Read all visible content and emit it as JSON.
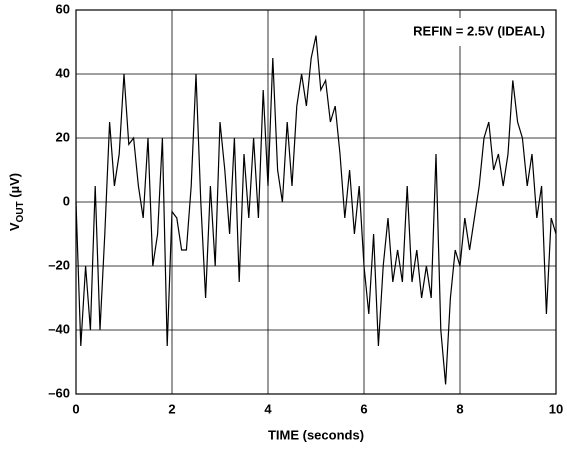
{
  "chart_data": {
    "type": "line",
    "xlabel": "TIME (seconds)",
    "ylabel_parts": [
      "V",
      "OUT",
      " (µV)"
    ],
    "annotation": "REFIN = 2.5V (IDEAL)",
    "xlim": [
      0,
      10
    ],
    "xticks": [
      0,
      2,
      4,
      6,
      8,
      10
    ],
    "ylim": [
      -60,
      60
    ],
    "yticks": [
      {
        "value": -60,
        "label": "–60"
      },
      {
        "value": -40,
        "label": "–40"
      },
      {
        "value": -20,
        "label": "–20"
      },
      0,
      20,
      40,
      60
    ],
    "grid": true,
    "series": [
      {
        "color": "#000000",
        "x": [
          0.0,
          0.1,
          0.2,
          0.3,
          0.4,
          0.5,
          0.6,
          0.7,
          0.8,
          0.9,
          1.0,
          1.1,
          1.2,
          1.3,
          1.4,
          1.5,
          1.6,
          1.7,
          1.8,
          1.9,
          2.0,
          2.1,
          2.2,
          2.3,
          2.4,
          2.5,
          2.6,
          2.7,
          2.8,
          2.9,
          3.0,
          3.1,
          3.2,
          3.3,
          3.4,
          3.5,
          3.6,
          3.7,
          3.8,
          3.9,
          4.0,
          4.1,
          4.2,
          4.3,
          4.4,
          4.5,
          4.6,
          4.7,
          4.8,
          4.9,
          5.0,
          5.1,
          5.2,
          5.3,
          5.4,
          5.5,
          5.6,
          5.7,
          5.8,
          5.9,
          6.0,
          6.1,
          6.2,
          6.3,
          6.4,
          6.5,
          6.6,
          6.7,
          6.8,
          6.9,
          7.0,
          7.1,
          7.2,
          7.3,
          7.4,
          7.5,
          7.6,
          7.7,
          7.8,
          7.9,
          8.0,
          8.1,
          8.2,
          8.3,
          8.4,
          8.5,
          8.6,
          8.7,
          8.8,
          8.9,
          9.0,
          9.1,
          9.2,
          9.3,
          9.4,
          9.5,
          9.6,
          9.7,
          9.8,
          9.9,
          10.0
        ],
        "values": [
          0,
          -45,
          -20,
          -40,
          5,
          -40,
          -10,
          25,
          5,
          15,
          40,
          18,
          20,
          5,
          -5,
          20,
          -20,
          -10,
          20,
          -45,
          -3,
          -5,
          -15,
          -15,
          5,
          40,
          0,
          -30,
          5,
          -20,
          25,
          10,
          -10,
          20,
          -25,
          15,
          -5,
          20,
          -5,
          35,
          5,
          45,
          10,
          0,
          25,
          5,
          30,
          40,
          30,
          45,
          52,
          35,
          38,
          25,
          30,
          15,
          -5,
          10,
          -10,
          5,
          -20,
          -35,
          -10,
          -45,
          -20,
          -5,
          -25,
          -15,
          -25,
          5,
          -25,
          -15,
          -30,
          -20,
          -30,
          15,
          -40,
          -57,
          -30,
          -15,
          -20,
          -5,
          -15,
          -5,
          5,
          20,
          25,
          10,
          15,
          5,
          15,
          38,
          25,
          20,
          5,
          15,
          -5,
          5,
          -35,
          -5,
          -10
        ]
      }
    ]
  }
}
